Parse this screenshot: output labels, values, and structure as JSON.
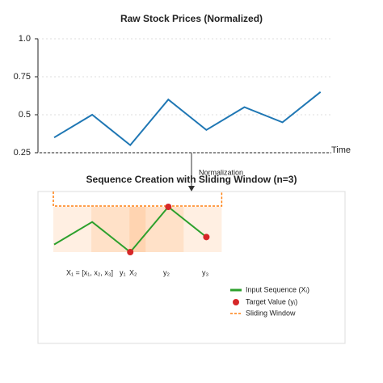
{
  "chart_data": [
    {
      "type": "line",
      "title": "Raw Stock Prices (Normalized)",
      "xlabel": "Time",
      "annotation": "Normalization",
      "series": [
        {
          "color": "#1f77b4",
          "values": [
            0.35,
            0.5,
            0.3,
            0.6,
            0.4,
            0.55,
            0.45,
            0.65
          ]
        }
      ],
      "ylim": [
        0.25,
        1.0
      ],
      "yticks": [
        {
          "value": 1.0,
          "label": "1.0"
        },
        0.75,
        0.5,
        0.25
      ],
      "grid": true
    },
    {
      "type": "window",
      "title": "Sequence Creation with Sliding Window (n=3)",
      "series": [
        {
          "name": "Input Sequence (Xᵢ)",
          "color": "#2ca02c",
          "values": [
            0.35,
            0.5,
            0.3,
            0.6,
            0.4
          ]
        },
        {
          "name": "Target Value (yᵢ)",
          "color": "#d62728",
          "values": [
            null,
            null,
            0.3,
            0.6,
            0.4
          ]
        }
      ],
      "window": {
        "name": "Sliding Window",
        "color": "#ff7f0e"
      },
      "labels": [
        "X₁ = [x₁, x₂, x₃]",
        "y₁",
        "X₂",
        "y₂",
        "y₃"
      ]
    }
  ]
}
